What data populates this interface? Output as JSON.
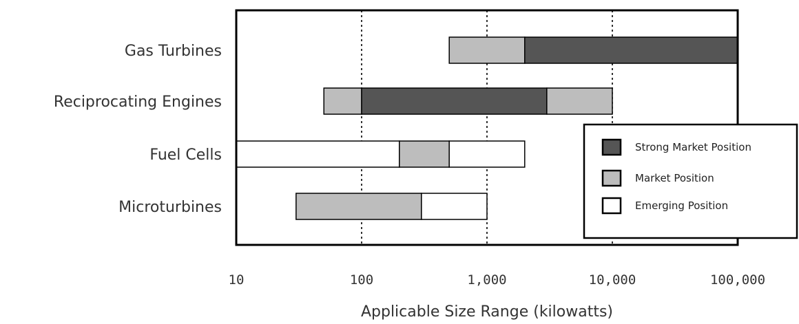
{
  "chart_data": {
    "type": "bar",
    "orientation": "horizontal",
    "x_scale": "log",
    "xlim": [
      10,
      100000
    ],
    "xlabel": "Applicable Size Range (kilowatts)",
    "x_ticks": [
      {
        "value": 10,
        "label": "10"
      },
      {
        "value": 100,
        "label": "100"
      },
      {
        "value": 1000,
        "label": "1,000"
      },
      {
        "value": 10000,
        "label": "10,000"
      },
      {
        "value": 100000,
        "label": "100,000"
      }
    ],
    "grid": "vertical dotted lines at 100, 1,000 and 10,000",
    "legend_position": "right",
    "categories": [
      "Gas Turbines",
      "Reciprocating Engines",
      "Fuel Cells",
      "Microturbines"
    ],
    "legend": [
      {
        "key": "strong",
        "label": "Strong Market Position",
        "color": "#555555"
      },
      {
        "key": "market",
        "label": "Market Position",
        "color": "#bdbdbd"
      },
      {
        "key": "emerging",
        "label": "Emerging Position",
        "color": "#ffffff"
      }
    ],
    "segments": [
      {
        "category": "Gas Turbines",
        "kind": "market",
        "from": 500,
        "to": 2000
      },
      {
        "category": "Gas Turbines",
        "kind": "strong",
        "from": 2000,
        "to": 100000
      },
      {
        "category": "Reciprocating Engines",
        "kind": "market",
        "from": 50,
        "to": 100
      },
      {
        "category": "Reciprocating Engines",
        "kind": "strong",
        "from": 100,
        "to": 3000
      },
      {
        "category": "Reciprocating Engines",
        "kind": "market",
        "from": 3000,
        "to": 10000
      },
      {
        "category": "Fuel Cells",
        "kind": "emerging",
        "from": 10,
        "to": 200
      },
      {
        "category": "Fuel Cells",
        "kind": "market",
        "from": 200,
        "to": 500
      },
      {
        "category": "Fuel Cells",
        "kind": "emerging",
        "from": 500,
        "to": 2000
      },
      {
        "category": "Microturbines",
        "kind": "market",
        "from": 30,
        "to": 300
      },
      {
        "category": "Microturbines",
        "kind": "emerging",
        "from": 300,
        "to": 1000
      }
    ]
  }
}
